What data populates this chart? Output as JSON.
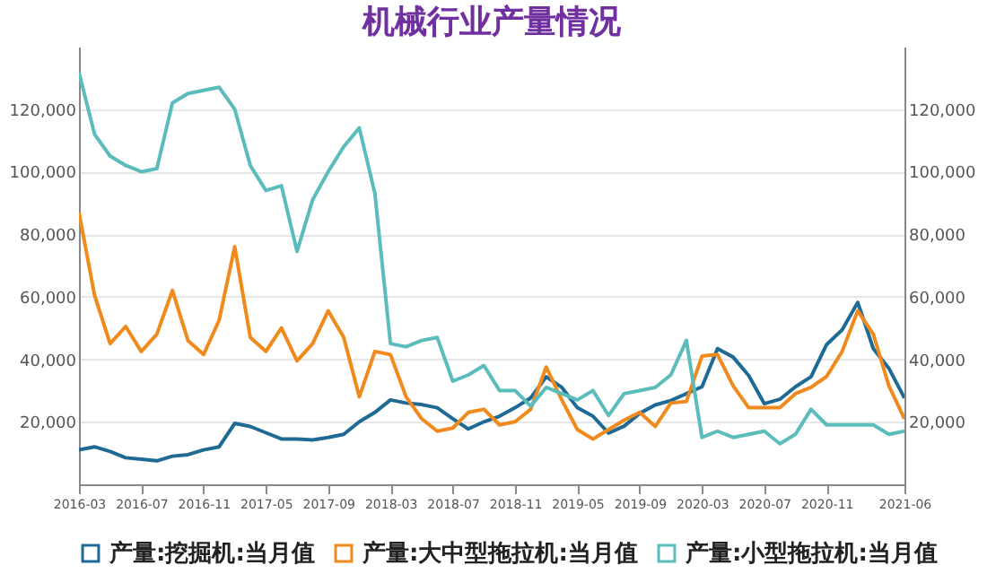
{
  "chart_data": {
    "type": "line",
    "title": "机械行业产量情况",
    "categories": [
      "2016-03",
      null,
      null,
      null,
      "2016-07",
      null,
      null,
      null,
      "2016-11",
      null,
      null,
      null,
      "2017-05",
      null,
      null,
      null,
      "2017-09",
      null,
      null,
      null,
      "2018-03",
      null,
      null,
      null,
      "2018-07",
      null,
      null,
      null,
      "2018-11",
      null,
      null,
      null,
      "2019-05",
      null,
      null,
      null,
      "2019-09",
      null,
      null,
      null,
      "2020-03",
      null,
      null,
      null,
      "2020-07",
      null,
      null,
      null,
      "2020-11",
      null,
      null,
      null,
      null,
      "2021-06"
    ],
    "series": [
      {
        "name": "产量:挖掘机:当月值",
        "color": "#1f6a94",
        "values": [
          11000,
          12000,
          10500,
          8500,
          8000,
          7500,
          9000,
          9500,
          11000,
          12000,
          19500,
          18500,
          16500,
          14500,
          14500,
          14200,
          15000,
          16000,
          20000,
          23000,
          27000,
          26000,
          25500,
          24500,
          21000,
          17700,
          20000,
          21800,
          24500,
          27600,
          34400,
          31000,
          24500,
          21800,
          16400,
          18600,
          22700,
          25400,
          26800,
          29000,
          31200,
          43400,
          40700,
          34800,
          25800,
          27200,
          31200,
          34400,
          44700,
          49400,
          58200,
          43400,
          37100,
          27600
        ]
      },
      {
        "name": "产量:大中型拖拉机:当月值",
        "color": "#f08a1d",
        "values": [
          87000,
          60500,
          45000,
          50500,
          42500,
          48000,
          62000,
          46000,
          41500,
          52500,
          76000,
          47000,
          42500,
          50000,
          39500,
          45000,
          55500,
          47000,
          28000,
          42500,
          41500,
          28000,
          21000,
          17000,
          18000,
          23000,
          24000,
          19000,
          20000,
          24000,
          37500,
          27000,
          17500,
          14500,
          17500,
          20500,
          23000,
          18500,
          26000,
          26500,
          41000,
          41500,
          31500,
          24500,
          24500,
          24500,
          29000,
          31000,
          34500,
          42500,
          55500,
          48000,
          31500,
          21000
        ]
      },
      {
        "name": "产量:小型拖拉机:当月值",
        "color": "#5bbdbb",
        "values": [
          131700,
          112000,
          105000,
          102000,
          100000,
          101000,
          122000,
          125000,
          126000,
          127000,
          120000,
          102000,
          94000,
          95500,
          74500,
          91000,
          100000,
          108000,
          114000,
          93000,
          45000,
          44000,
          46000,
          47000,
          33000,
          35000,
          38000,
          30000,
          30000,
          25000,
          31000,
          29000,
          27000,
          30000,
          22000,
          29000,
          30000,
          31000,
          35000,
          46000,
          15000,
          17000,
          15000,
          16000,
          17000,
          13000,
          16000,
          24000,
          19000,
          19000,
          19000,
          19000,
          16000,
          17000
        ]
      }
    ],
    "ylim": [
      0,
      140000
    ],
    "yticks": [
      {
        "value": 20000,
        "label": "20,000"
      },
      {
        "value": 40000,
        "label": "40,000"
      },
      {
        "value": 60000,
        "label": "60,000"
      },
      {
        "value": 80000,
        "label": "80,000"
      },
      {
        "value": 100000,
        "label": "100,000"
      },
      {
        "value": 120000,
        "label": "120,000"
      }
    ],
    "y2lim": [
      0,
      140000
    ],
    "y2ticks": [
      {
        "value": 20000,
        "label": "20,000"
      },
      {
        "value": 40000,
        "label": "40,000"
      },
      {
        "value": 60000,
        "label": "60,000"
      },
      {
        "value": 80000,
        "label": "80,000"
      },
      {
        "value": 100000,
        "label": "100,000"
      },
      {
        "value": 120000,
        "label": "120,000"
      }
    ],
    "grid": "y",
    "legend": "bottom",
    "marker": "none",
    "line_style": "solid"
  }
}
